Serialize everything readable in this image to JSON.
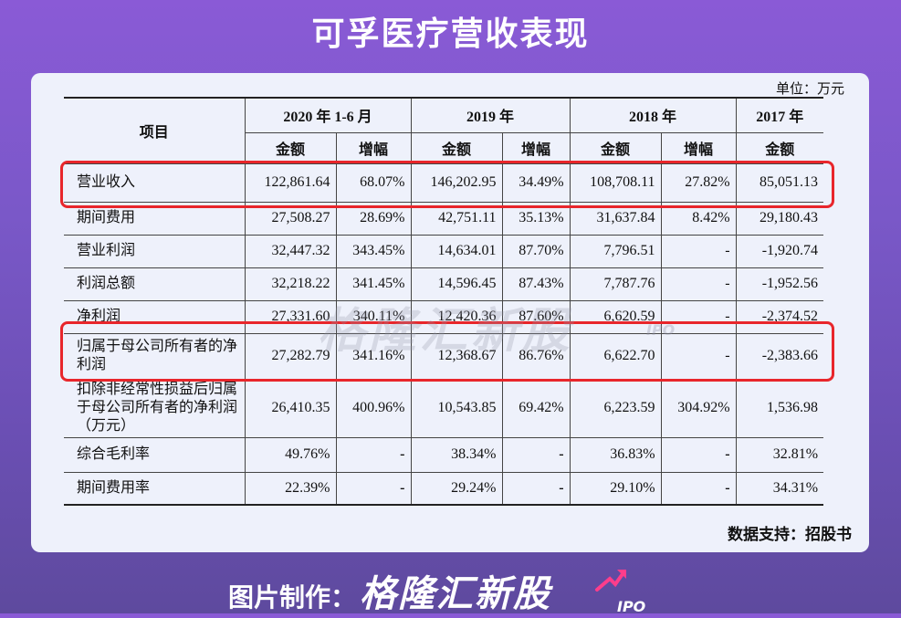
{
  "title": "可孚医疗营收表现",
  "unit": "单位：万元",
  "header": {
    "item": "项目",
    "periods": [
      "2020 年 1-6 月",
      "2019 年",
      "2018 年",
      "2017 年"
    ],
    "amount": "金额",
    "growth": "增幅"
  },
  "rows": [
    {
      "label": "营业收入",
      "values": [
        "122,861.64",
        "68.07%",
        "146,202.95",
        "34.49%",
        "108,708.11",
        "27.82%",
        "85,051.13"
      ]
    },
    {
      "label": "期间费用",
      "values": [
        "27,508.27",
        "28.69%",
        "42,751.11",
        "35.13%",
        "31,637.84",
        "8.42%",
        "29,180.43"
      ]
    },
    {
      "label": "营业利润",
      "values": [
        "32,447.32",
        "343.45%",
        "14,634.01",
        "87.70%",
        "7,796.51",
        "-",
        "-1,920.74"
      ]
    },
    {
      "label": "利润总额",
      "values": [
        "32,218.22",
        "341.45%",
        "14,596.45",
        "87.43%",
        "7,787.76",
        "-",
        "-1,952.56"
      ]
    },
    {
      "label": "净利润",
      "values": [
        "27,331.60",
        "340.11%",
        "12,420.36",
        "87.60%",
        "6,620.59",
        "-",
        "-2,374.52"
      ]
    },
    {
      "label": "归属于母公司所有者的净利润",
      "values": [
        "27,282.79",
        "341.16%",
        "12,368.67",
        "86.76%",
        "6,622.70",
        "-",
        "-2,383.66"
      ]
    },
    {
      "label": "扣除非经常性损益后归属于母公司所有者的净利润（万元）",
      "values": [
        "26,410.35",
        "400.96%",
        "10,543.85",
        "69.42%",
        "6,223.59",
        "304.92%",
        "1,536.98"
      ]
    },
    {
      "label": "综合毛利率",
      "values": [
        "49.76%",
        "-",
        "38.34%",
        "-",
        "36.83%",
        "-",
        "32.81%"
      ]
    },
    {
      "label": "期间费用率",
      "values": [
        "22.39%",
        "-",
        "29.24%",
        "-",
        "29.10%",
        "-",
        "34.31%"
      ]
    }
  ],
  "watermark": "格隆汇新股",
  "watermark_ipo": "IPO",
  "source": "数据支持：招股书",
  "footer": {
    "prefix": "图片制作：",
    "brand": "格隆汇新股",
    "ipo": "IPO"
  },
  "colors": {
    "highlight": "#e8262b",
    "background_top": "#8a5ad6",
    "card": "#eef1fb"
  }
}
